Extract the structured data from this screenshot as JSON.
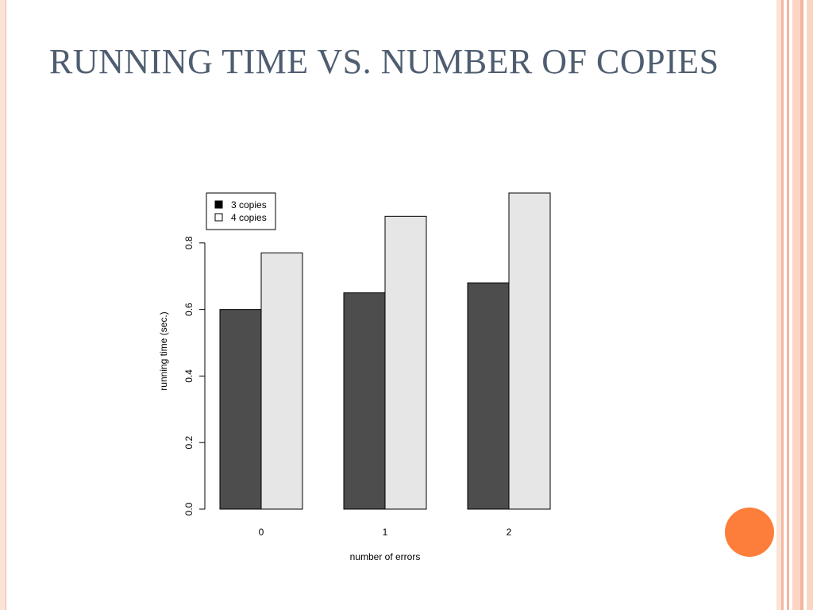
{
  "slide": {
    "title": "RUNNING TIME VS. NUMBER OF COPIES"
  },
  "theme": {
    "title_color": "#4f5d70",
    "accent_orange": "#fd7e3a",
    "border_peach": "#f3b59c",
    "border_light": "#fbe3d8"
  },
  "chart_data": {
    "type": "bar",
    "title": "",
    "xlabel": "number of errors",
    "ylabel": "running time (sec.)",
    "categories": [
      "0",
      "1",
      "2"
    ],
    "series": [
      {
        "name": "3 copies",
        "values": [
          0.6,
          0.65,
          0.68
        ],
        "color": "#4d4d4d"
      },
      {
        "name": "4 copies",
        "values": [
          0.77,
          0.88,
          0.95
        ],
        "color": "#e6e6e6"
      }
    ],
    "yticks": [
      "0.0",
      "0.2",
      "0.4",
      "0.6",
      "0.8"
    ],
    "ylim": [
      0,
      0.95
    ],
    "grid": false,
    "legend_position": "top-left"
  }
}
